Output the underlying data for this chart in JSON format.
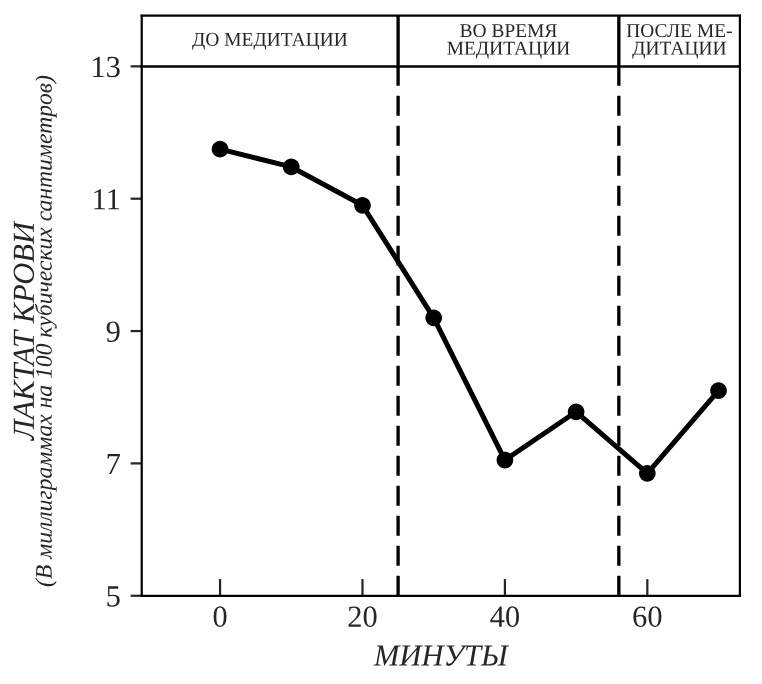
{
  "chart_data": {
    "type": "line",
    "xlabel": "МИНУТЫ",
    "ylabel": "ЛАКТАТ КРОВИ",
    "annotations": [
      "ДО МЕДИТАЦИИ",
      "ВО ВРЕМЯ\nМЕДИТАЦИИ",
      "ПОСЛЕ МЕ-\nДИТАЦИИ",
      "(В миллиграммах на 100 кубических сантиметров)"
    ],
    "x": [
      0,
      10,
      20,
      30,
      40,
      50,
      60,
      70
    ],
    "series": [
      {
        "color": "#000000",
        "values": [
          11.75,
          11.48,
          10.9,
          9.2,
          7.05,
          7.78,
          6.85,
          8.1
        ]
      }
    ],
    "xlim": [
      -11,
      73
    ],
    "xticks": [
      0,
      20,
      40,
      60
    ],
    "ylim": [
      5,
      13
    ],
    "yticks": [
      5,
      7,
      9,
      11,
      13
    ],
    "ref_lines": [
      {
        "axis": "x",
        "value": 25,
        "line_style": "dashed",
        "color": "#000000"
      },
      {
        "axis": "x",
        "value": 56,
        "line_style": "dashed",
        "color": "#000000"
      }
    ],
    "marker": "circle",
    "line_style": "solid",
    "grid": false,
    "legend": false
  }
}
